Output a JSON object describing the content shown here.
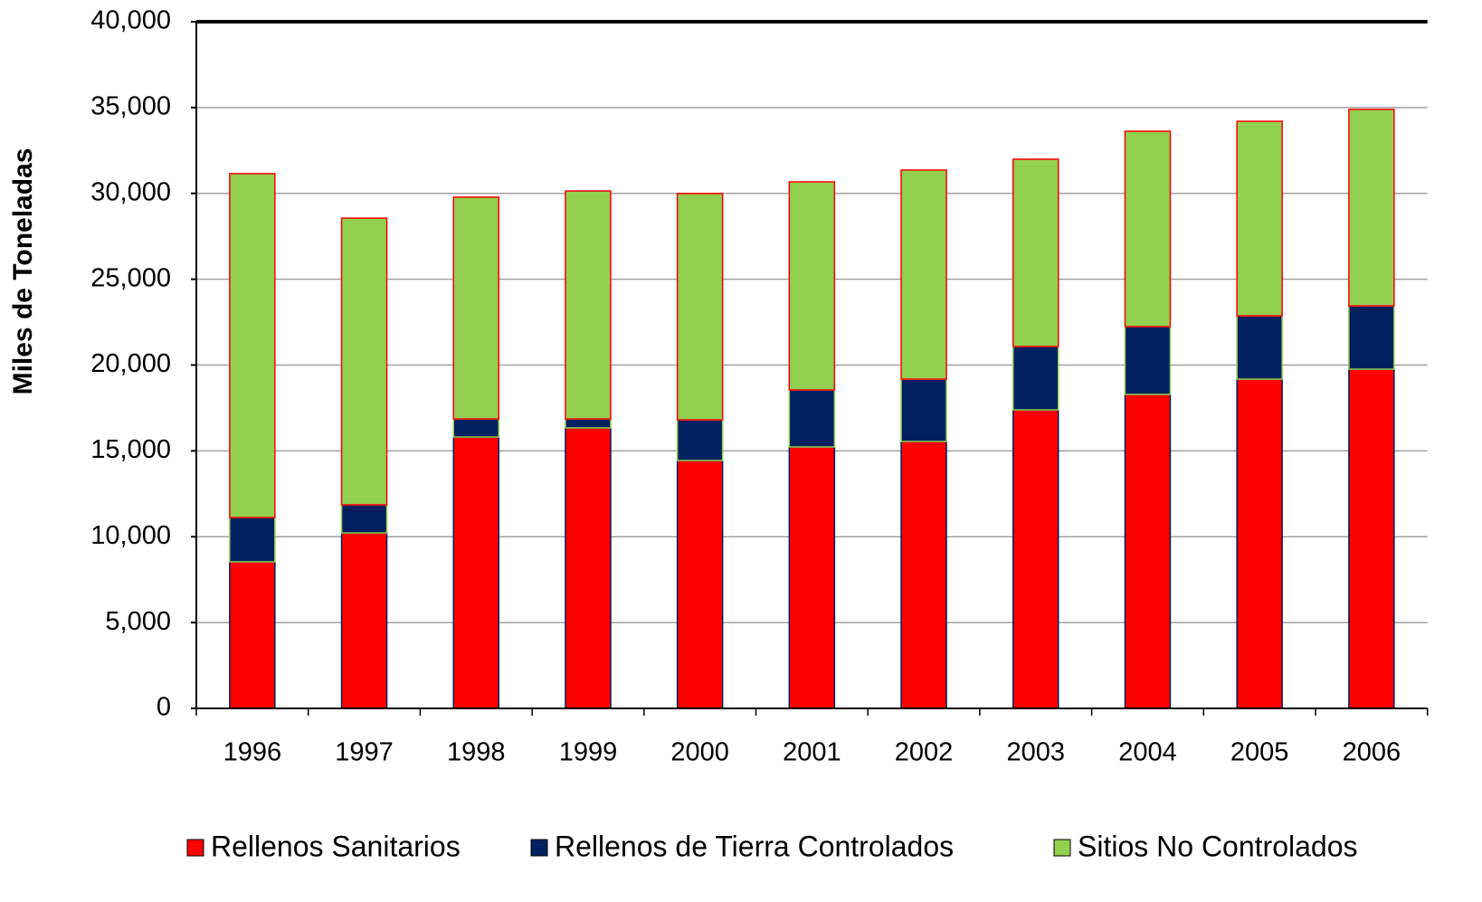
{
  "chart_data": {
    "type": "stacked_bar",
    "y_label": "Miles de Toneladas",
    "categories": [
      "1996",
      "1997",
      "1998",
      "1999",
      "2000",
      "2001",
      "2002",
      "2003",
      "2004",
      "2005",
      "2006"
    ],
    "series": [
      {
        "name": "Rellenos Sanitarios",
        "color": "#ff0000",
        "values": [
          8540,
          10220,
          15810,
          16340,
          14440,
          15230,
          15550,
          17390,
          18290,
          19180,
          19760
        ]
      },
      {
        "name": "Rellenos de Tierra Controlados",
        "color": "#002060",
        "values": [
          2580,
          1640,
          1050,
          520,
          2370,
          3320,
          3630,
          3690,
          3950,
          3690,
          3690
        ]
      },
      {
        "name": "Sitios No Controlados",
        "color": "#92d050",
        "values": [
          20030,
          16700,
          12920,
          13280,
          13180,
          12120,
          12180,
          10910,
          11380,
          11330,
          11440
        ]
      }
    ],
    "ylim": [
      0,
      40000
    ],
    "yticks": [
      0,
      {
        "value": 5000,
        "label": "5,000"
      },
      {
        "value": 10000,
        "label": "10,000"
      },
      {
        "value": 15000,
        "label": "15,000"
      },
      {
        "value": 20000,
        "label": "20,000"
      },
      {
        "value": 25000,
        "label": "25,000"
      },
      {
        "value": 30000,
        "label": "30,000"
      },
      {
        "value": 35000,
        "label": "35,000"
      },
      {
        "value": 40000,
        "label": "40,000"
      }
    ],
    "grid": true,
    "legend": "bottom"
  }
}
